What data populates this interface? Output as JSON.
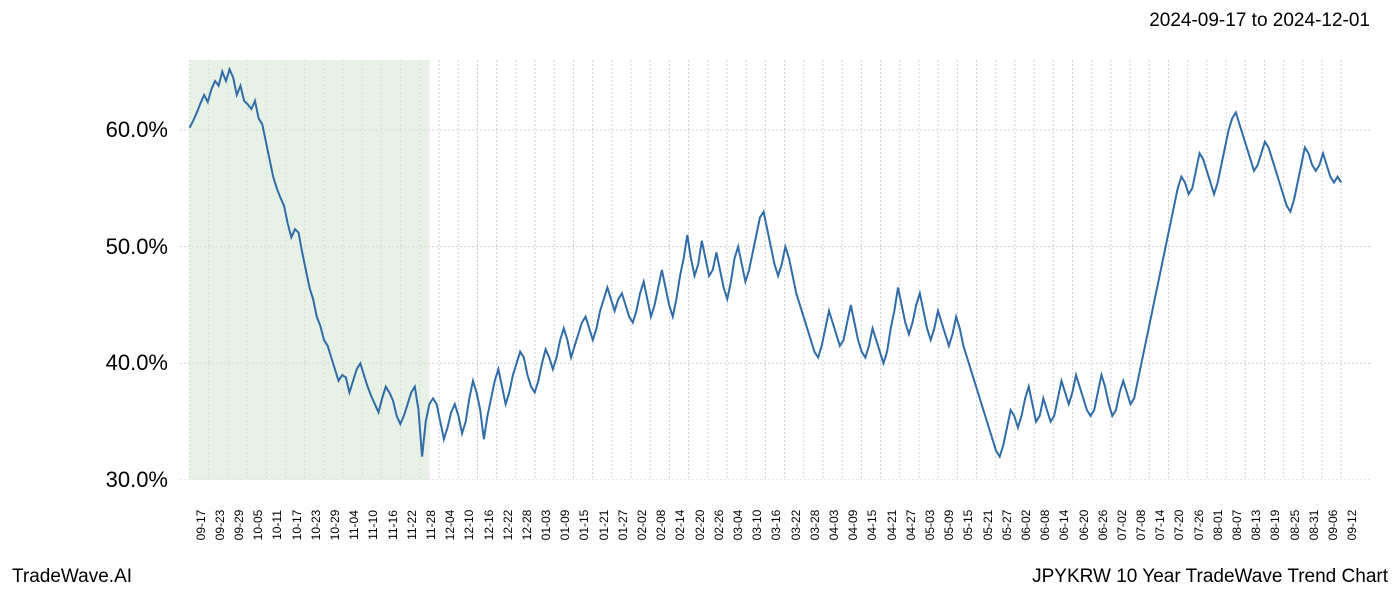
{
  "header": {
    "date_range": "2024-09-17 to 2024-12-01"
  },
  "footer": {
    "brand": "TradeWave.AI",
    "chart_title": "JPYKRW 10 Year TradeWave Trend Chart"
  },
  "chart": {
    "type": "line",
    "background_color": "#ffffff",
    "grid_color": "#d0d0d0",
    "grid_dash": "2,2",
    "line_color": "#2f6ca8",
    "line_width": 2,
    "highlight_band": {
      "fill": "#d8e8d4",
      "opacity": 0.6,
      "x_start": "09-17",
      "x_end": "12-01"
    },
    "y_axis": {
      "label_fontsize": 22,
      "tick_format": "percent",
      "ylim": [
        30,
        66
      ],
      "ticks": [
        {
          "value": 30,
          "label": "30.0%"
        },
        {
          "value": 40,
          "label": "40.0%"
        },
        {
          "value": 50,
          "label": "50.0%"
        },
        {
          "value": 60,
          "label": "60.0%"
        }
      ]
    },
    "x_axis": {
      "label_fontsize": 12,
      "rotation": -90,
      "ticks": [
        "09-17",
        "09-23",
        "09-29",
        "10-05",
        "10-11",
        "10-17",
        "10-23",
        "10-29",
        "11-04",
        "11-10",
        "11-16",
        "11-22",
        "11-28",
        "12-04",
        "12-10",
        "12-16",
        "12-22",
        "12-28",
        "01-03",
        "01-09",
        "01-15",
        "01-21",
        "01-27",
        "02-02",
        "02-08",
        "02-14",
        "02-20",
        "02-26",
        "03-04",
        "03-10",
        "03-16",
        "03-22",
        "03-28",
        "04-03",
        "04-09",
        "04-15",
        "04-21",
        "04-27",
        "05-03",
        "05-09",
        "05-15",
        "05-21",
        "05-27",
        "06-02",
        "06-08",
        "06-14",
        "06-20",
        "06-26",
        "07-02",
        "07-08",
        "07-14",
        "07-20",
        "07-26",
        "08-01",
        "08-07",
        "08-13",
        "08-19",
        "08-25",
        "08-31",
        "09-06",
        "09-12"
      ]
    },
    "series": {
      "name": "JPYKRW",
      "values": [
        60.2,
        60.8,
        61.5,
        62.3,
        63.0,
        62.4,
        63.5,
        64.2,
        63.8,
        65.0,
        64.2,
        65.2,
        64.5,
        63.0,
        63.8,
        62.5,
        62.2,
        61.8,
        62.5,
        61.0,
        60.5,
        59.0,
        57.5,
        56.0,
        55.0,
        54.2,
        53.5,
        52.0,
        50.8,
        51.5,
        51.2,
        49.5,
        48.0,
        46.5,
        45.5,
        44.0,
        43.2,
        42.0,
        41.5,
        40.5,
        39.5,
        38.5,
        39.0,
        38.8,
        37.5,
        38.5,
        39.5,
        40.0,
        39.0,
        38.0,
        37.2,
        36.5,
        35.8,
        37.0,
        38.0,
        37.5,
        36.8,
        35.5,
        34.8,
        35.5,
        36.5,
        37.5,
        38.0,
        36.0,
        32.0,
        35.0,
        36.5,
        37.0,
        36.5,
        35.0,
        33.5,
        34.5,
        35.8,
        36.5,
        35.5,
        34.0,
        35.0,
        37.0,
        38.5,
        37.5,
        36.0,
        33.5,
        35.5,
        37.0,
        38.5,
        39.5,
        38.0,
        36.5,
        37.5,
        39.0,
        40.0,
        41.0,
        40.5,
        39.0,
        38.0,
        37.5,
        38.5,
        40.0,
        41.2,
        40.5,
        39.5,
        40.5,
        42.0,
        43.0,
        42.0,
        40.5,
        41.5,
        42.5,
        43.5,
        44.0,
        43.0,
        42.0,
        43.0,
        44.5,
        45.5,
        46.5,
        45.5,
        44.5,
        45.5,
        46.0,
        45.0,
        44.0,
        43.5,
        44.5,
        46.0,
        47.0,
        45.5,
        44.0,
        45.0,
        46.5,
        48.0,
        46.5,
        45.0,
        44.0,
        45.5,
        47.5,
        49.0,
        51.0,
        49.0,
        47.5,
        48.5,
        50.5,
        49.0,
        47.5,
        48.0,
        49.5,
        48.0,
        46.5,
        45.5,
        47.0,
        49.0,
        50.0,
        48.5,
        47.0,
        48.0,
        49.5,
        51.0,
        52.5,
        53.0,
        51.5,
        50.0,
        48.5,
        47.5,
        48.5,
        50.0,
        49.0,
        47.5,
        46.0,
        45.0,
        44.0,
        43.0,
        42.0,
        41.0,
        40.5,
        41.5,
        43.0,
        44.5,
        43.5,
        42.5,
        41.5,
        42.0,
        43.5,
        45.0,
        43.5,
        42.0,
        41.0,
        40.5,
        41.5,
        43.0,
        42.0,
        41.0,
        40.0,
        41.0,
        43.0,
        44.5,
        46.5,
        45.0,
        43.5,
        42.5,
        43.5,
        45.0,
        46.0,
        44.5,
        43.0,
        42.0,
        43.0,
        44.5,
        43.5,
        42.5,
        41.5,
        42.5,
        44.0,
        43.0,
        41.5,
        40.5,
        39.5,
        38.5,
        37.5,
        36.5,
        35.5,
        34.5,
        33.5,
        32.5,
        32.0,
        33.0,
        34.5,
        36.0,
        35.5,
        34.5,
        35.5,
        37.0,
        38.0,
        36.5,
        35.0,
        35.5,
        37.0,
        36.0,
        35.0,
        35.5,
        37.0,
        38.5,
        37.5,
        36.5,
        37.5,
        39.0,
        38.0,
        37.0,
        36.0,
        35.5,
        36.0,
        37.5,
        39.0,
        38.0,
        36.5,
        35.5,
        36.0,
        37.5,
        38.5,
        37.5,
        36.5,
        37.0,
        38.5,
        40.0,
        41.5,
        43.0,
        44.5,
        46.0,
        47.5,
        49.0,
        50.5,
        52.0,
        53.5,
        55.0,
        56.0,
        55.5,
        54.5,
        55.0,
        56.5,
        58.0,
        57.5,
        56.5,
        55.5,
        54.5,
        55.5,
        57.0,
        58.5,
        60.0,
        61.0,
        61.5,
        60.5,
        59.5,
        58.5,
        57.5,
        56.5,
        57.0,
        58.0,
        59.0,
        58.5,
        57.5,
        56.5,
        55.5,
        54.5,
        53.5,
        53.0,
        54.0,
        55.5,
        57.0,
        58.5,
        58.0,
        57.0,
        56.5,
        57.0,
        58.0,
        57.0,
        56.0,
        55.5,
        56.0,
        55.5
      ]
    }
  }
}
